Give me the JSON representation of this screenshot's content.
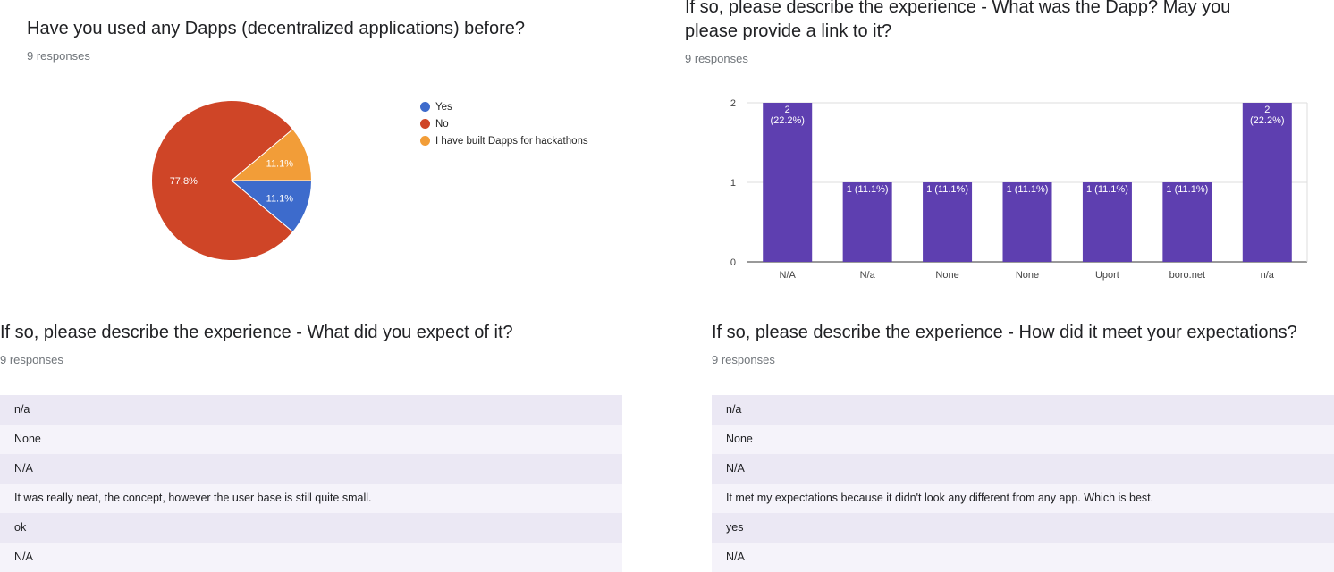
{
  "q1": {
    "title": "Have you used any Dapps (decentralized applications) before?",
    "responses": "9 responses"
  },
  "q2": {
    "title_line1": "If so, please describe the experience - What was the Dapp? May you",
    "title_line2": "please provide a link to it?",
    "responses": "9 responses"
  },
  "q3": {
    "title": "If so, please describe the experience - What did you expect of it?",
    "responses": "9 responses",
    "answers": [
      "n/a",
      "None",
      "N/A",
      "It was really neat, the concept, however the user base is still quite small.",
      "ok",
      "N/A"
    ]
  },
  "q4": {
    "title": "If so, please describe the experience - How did it meet your expectations?",
    "responses": "9 responses",
    "answers": [
      "n/a",
      "None",
      "N/A",
      "It met my expectations because it didn't look any different from any app. Which is best.",
      "yes",
      "N/A"
    ]
  },
  "chart_data": [
    {
      "type": "pie",
      "title": "Have you used any Dapps (decentralized applications) before?",
      "legend_position": "right",
      "slices": [
        {
          "label": "Yes",
          "value": 11.1,
          "display": "11.1%",
          "color": "#3d6bcc"
        },
        {
          "label": "No",
          "value": 77.8,
          "display": "77.8%",
          "color": "#cf4527"
        },
        {
          "label": "I have built Dapps for hackathons",
          "value": 11.1,
          "display": "11.1%",
          "color": "#f29d38"
        }
      ]
    },
    {
      "type": "bar",
      "title": "If so, please describe the experience - What was the Dapp? May you please provide a link to it?",
      "categories": [
        "N/A",
        "N/a",
        "None",
        "None",
        "Uport",
        "boro.net",
        "n/a"
      ],
      "values": [
        2,
        1,
        1,
        1,
        1,
        1,
        2
      ],
      "data_labels": [
        "2\n(22.2%)",
        "1 (11.1%)",
        "1 (11.1%)",
        "1 (11.1%)",
        "1 (11.1%)",
        "1 (11.1%)",
        "2\n(22.2%)"
      ],
      "ylim": [
        0,
        2
      ],
      "yticks": [
        "0",
        "1",
        "2"
      ],
      "grid": true,
      "bar_color": "#5e3fb0"
    }
  ]
}
